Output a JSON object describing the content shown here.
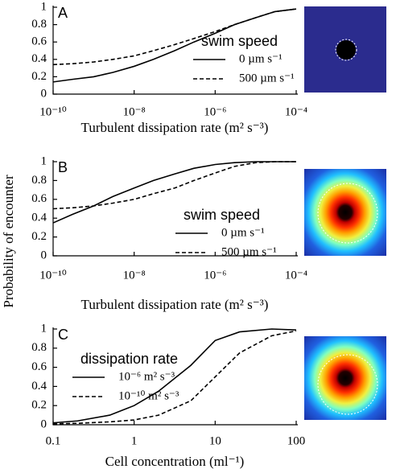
{
  "y_label": "Probability of encounter",
  "chart_data": [
    {
      "type": "line",
      "panel": "A",
      "xscale": "log",
      "xlabel": "Turbulent dissipation rate (m² s⁻³)",
      "legend_title": "swim speed",
      "x": [
        1e-10,
        3e-10,
        1e-09,
        3e-09,
        1e-08,
        3e-08,
        1e-07,
        3e-07,
        1e-06,
        3e-06,
        1e-05,
        3e-05,
        0.0001
      ],
      "series": [
        {
          "name": "0 µm s⁻¹",
          "color": "#000",
          "linestyle": "solid",
          "values": [
            0.14,
            0.17,
            0.2,
            0.25,
            0.32,
            0.4,
            0.5,
            0.6,
            0.7,
            0.8,
            0.88,
            0.95,
            0.98
          ]
        },
        {
          "name": "500 µm s⁻¹",
          "color": "#000",
          "linestyle": "dashed",
          "values": [
            0.34,
            0.35,
            0.37,
            0.4,
            0.44,
            0.5,
            0.57,
            0.64,
            0.72,
            0.8,
            0.88,
            0.95,
            0.98
          ]
        }
      ],
      "xlim": [
        1e-10,
        0.0001
      ],
      "xticks": [
        {
          "value": 1e-10,
          "label": "10⁻¹⁰"
        },
        {
          "value": 1e-08,
          "label": "10⁻⁸"
        },
        {
          "value": 1e-06,
          "label": "10⁻⁶"
        },
        {
          "value": 0.0001,
          "label": "10⁻⁴"
        }
      ],
      "ylim": [
        0,
        1
      ],
      "yticks": [
        0,
        0.2,
        0.4,
        0.6,
        0.8,
        1
      ]
    },
    {
      "type": "line",
      "panel": "B",
      "xscale": "log",
      "xlabel": "Turbulent dissipation rate (m² s⁻³)",
      "legend_title": "swim speed",
      "x": [
        1e-10,
        3e-10,
        1e-09,
        3e-09,
        1e-08,
        3e-08,
        1e-07,
        3e-07,
        1e-06,
        3e-06,
        1e-05,
        3e-05,
        0.0001
      ],
      "series": [
        {
          "name": "0 µm s⁻¹",
          "color": "#000",
          "linestyle": "solid",
          "values": [
            0.35,
            0.44,
            0.53,
            0.63,
            0.72,
            0.8,
            0.87,
            0.93,
            0.97,
            0.99,
            1,
            1,
            1
          ]
        },
        {
          "name": "500 µm s⁻¹",
          "color": "#000",
          "linestyle": "dashed",
          "values": [
            0.5,
            0.51,
            0.53,
            0.56,
            0.6,
            0.66,
            0.72,
            0.8,
            0.88,
            0.95,
            0.99,
            1,
            1
          ]
        }
      ],
      "xlim": [
        1e-10,
        0.0001
      ],
      "xticks": [
        {
          "value": 1e-10,
          "label": "10⁻¹⁰"
        },
        {
          "value": 1e-08,
          "label": "10⁻⁸"
        },
        {
          "value": 1e-06,
          "label": "10⁻⁶"
        },
        {
          "value": 0.0001,
          "label": "10⁻⁴"
        }
      ],
      "ylim": [
        0,
        1
      ],
      "yticks": [
        0,
        0.2,
        0.4,
        0.6,
        0.8,
        1
      ]
    },
    {
      "type": "line",
      "panel": "C",
      "xscale": "log",
      "xlabel": "Cell concentration (ml⁻¹)",
      "legend_title": "dissipation rate",
      "x": [
        0.1,
        0.2,
        0.5,
        1,
        2,
        5,
        10,
        20,
        50,
        100
      ],
      "series": [
        {
          "name": "10⁻⁶ m² s⁻³",
          "color": "#000",
          "linestyle": "solid",
          "values": [
            0.02,
            0.04,
            0.1,
            0.2,
            0.35,
            0.62,
            0.88,
            0.97,
            1,
            0.99
          ]
        },
        {
          "name": "10⁻¹⁰ m² s⁻³",
          "color": "#000",
          "linestyle": "dashed",
          "values": [
            0.01,
            0.015,
            0.03,
            0.05,
            0.1,
            0.25,
            0.5,
            0.75,
            0.93,
            0.98
          ]
        }
      ],
      "xlim": [
        0.1,
        100
      ],
      "xticks": [
        0.1,
        1,
        10,
        100
      ],
      "ylim": [
        0,
        1
      ],
      "yticks": [
        0,
        0.2,
        0.4,
        0.6,
        0.8,
        1
      ]
    }
  ]
}
